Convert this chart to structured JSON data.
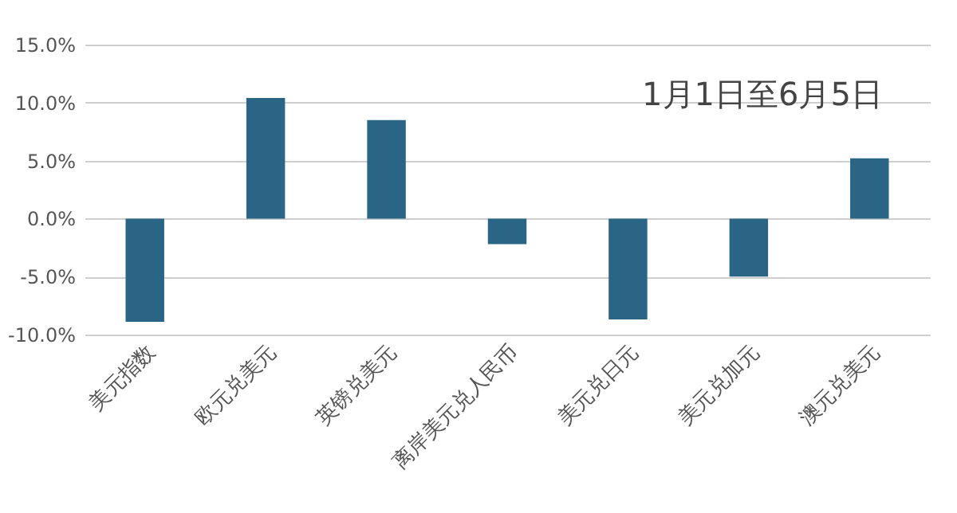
{
  "chart_data": {
    "type": "bar",
    "title": "1月1日至6月5日",
    "categories": [
      "美元指数",
      "欧元兑美元",
      "英镑兑美元",
      "离岸美元兑人民币",
      "美元兑日元",
      "美元兑加元",
      "澳元兑美元"
    ],
    "values": [
      -8.9,
      10.4,
      8.5,
      -2.2,
      -8.7,
      -5.0,
      5.2
    ],
    "color": "#2b6585",
    "ylim": [
      -10,
      15
    ],
    "yticks": [
      {
        "value": -10,
        "label": "-10.0%"
      },
      {
        "value": -5,
        "label": "-5.0%"
      },
      {
        "value": 0,
        "label": "0.0%"
      },
      {
        "value": 5,
        "label": "5.0%"
      },
      {
        "value": 10,
        "label": "10.0%"
      },
      {
        "value": 15,
        "label": "15.0%"
      }
    ],
    "grid": "y"
  }
}
